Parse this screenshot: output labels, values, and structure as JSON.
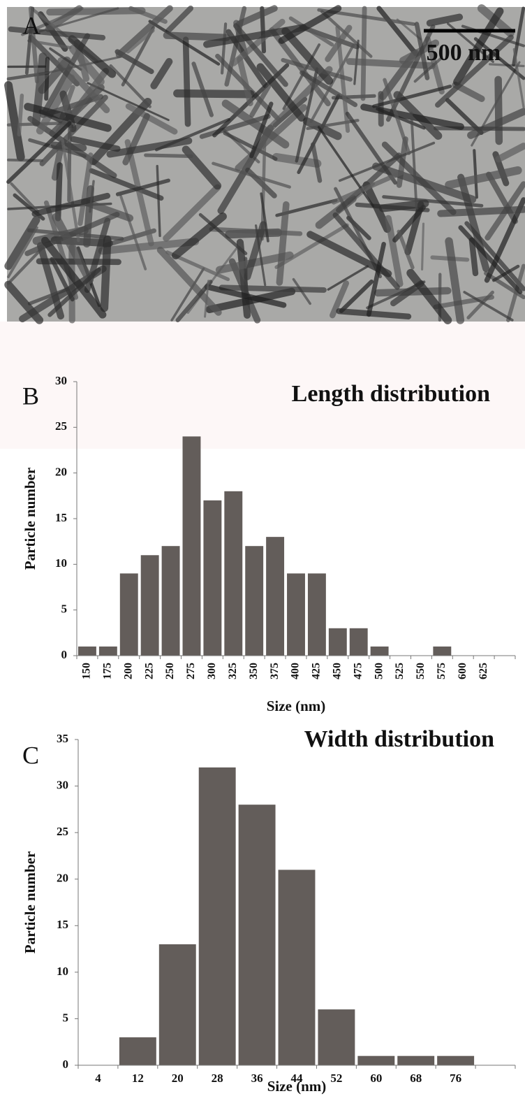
{
  "panel_a": {
    "label": "A",
    "scale_bar": "500 nm"
  },
  "chart_data": [
    {
      "type": "bar",
      "panel_label": "B",
      "title": "Length distribution",
      "x_label": "Size (nm)",
      "y_label": "Particle number",
      "categories": [
        "150",
        "175",
        "200",
        "225",
        "250",
        "275",
        "300",
        "325",
        "350",
        "375",
        "400",
        "425",
        "450",
        "475",
        "500",
        "525",
        "550",
        "575",
        "600",
        "625",
        null
      ],
      "values": [
        1,
        1,
        9,
        11,
        12,
        24,
        17,
        18,
        12,
        13,
        9,
        9,
        3,
        3,
        1,
        0,
        0,
        1,
        0,
        0,
        0
      ],
      "color": "#635d5a",
      "ylim": [
        0,
        30
      ],
      "yticks": [
        0,
        5,
        10,
        15,
        20,
        25,
        30
      ]
    },
    {
      "type": "bar",
      "panel_label": "C",
      "title": "Width distribution",
      "x_label": "Size (nm)",
      "y_label": "Particle number",
      "categories": [
        "4",
        "12",
        "20",
        "28",
        "36",
        "44",
        "52",
        "60",
        "68",
        "76",
        null
      ],
      "values": [
        0,
        3,
        13,
        32,
        28,
        21,
        6,
        1,
        1,
        1,
        0
      ],
      "color": "#635d5a",
      "ylim": [
        0,
        35
      ],
      "yticks": [
        0,
        5,
        10,
        15,
        20,
        25,
        30,
        35
      ]
    }
  ]
}
